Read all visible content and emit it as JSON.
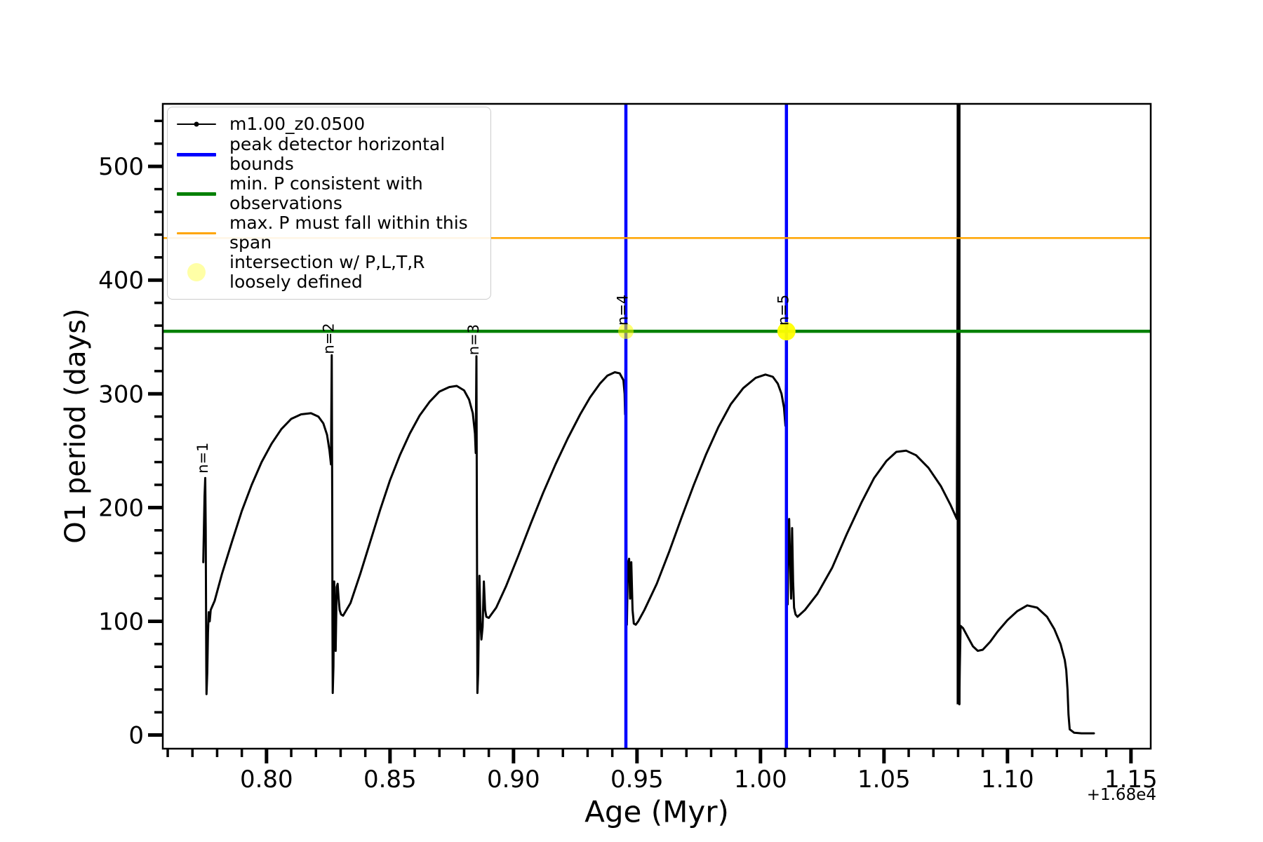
{
  "chart_data": {
    "type": "line",
    "title": "",
    "xlabel": "Age (Myr)",
    "ylabel": "O1 period (days)",
    "x_offset_text": "+1.68e4",
    "grid": false,
    "xlim": [
      0.758,
      1.158
    ],
    "ylim": [
      -12,
      555
    ],
    "x_major_ticks": [
      0.8,
      0.85,
      0.9,
      0.95,
      1.0,
      1.05,
      1.1,
      1.15
    ],
    "y_major_ticks": [
      0,
      100,
      200,
      300,
      400,
      500
    ],
    "x_minor_step": 0.01,
    "y_minor_step": 20,
    "legend": {
      "position": "upper-left",
      "entries": [
        {
          "label": "m1.00_z0.0500",
          "key": "line-marker",
          "color": "#000000",
          "lw": 2
        },
        {
          "label": "peak detector horizontal bounds",
          "key": "line",
          "color": "#0000ff",
          "lw": 5
        },
        {
          "label": "min. P consistent with observations",
          "key": "line",
          "color": "#008000",
          "lw": 5
        },
        {
          "label": "max. P must fall within this span",
          "key": "line",
          "color": "#ffa500",
          "lw": 3
        },
        {
          "label": "intersection w/ P,L,T,R\nloosely defined",
          "key": "marker",
          "color": "#ffff00",
          "alpha": 0.35,
          "r": 13
        }
      ]
    },
    "hlines": [
      {
        "name": "min-P-observed",
        "y": 355,
        "color": "#008000",
        "lw": 4.5
      },
      {
        "name": "max-P-span",
        "y": 437,
        "color": "#ffa500",
        "lw": 2.5
      }
    ],
    "vlines": [
      {
        "name": "peak-detector-bound-1",
        "x": 0.9455,
        "color": "#0000ff",
        "lw": 4.5,
        "y_from": -12,
        "y_to": 555
      },
      {
        "name": "peak-detector-bound-2",
        "x": 1.0105,
        "color": "#0000ff",
        "lw": 4.5,
        "y_from": -12,
        "y_to": 555
      },
      {
        "name": "data-excursion-wall",
        "x": 1.0802,
        "color": "#000000",
        "lw": 5.5,
        "y_from": 27,
        "y_to": 555
      }
    ],
    "markers": [
      {
        "name": "intersection-n4",
        "x": 0.9455,
        "y": 355,
        "color": "#ffff00",
        "alpha": 0.55,
        "r": 11
      },
      {
        "name": "intersection-n5",
        "x": 1.0105,
        "y": 355,
        "color": "#ffff00",
        "alpha": 0.95,
        "r": 13
      }
    ],
    "annotations": [
      {
        "text": "n=1",
        "x": 0.7762,
        "y": 230,
        "rotation": -90
      },
      {
        "text": "n=2",
        "x": 0.8272,
        "y": 335,
        "rotation": -90
      },
      {
        "text": "n=3",
        "x": 0.8858,
        "y": 334,
        "rotation": -90
      },
      {
        "text": "n=4",
        "x": 0.9462,
        "y": 360,
        "rotation": -90
      },
      {
        "text": "n=5",
        "x": 1.0112,
        "y": 360,
        "rotation": -90
      }
    ],
    "series": [
      {
        "name": "m1.00_z0.0500",
        "color": "#000000",
        "marker": ".",
        "points": [
          [
            0.7744,
            152
          ],
          [
            0.7749,
            210
          ],
          [
            0.7752,
            226
          ],
          [
            0.7754,
            180
          ],
          [
            0.7755,
            120
          ],
          [
            0.7756,
            60
          ],
          [
            0.7757,
            36
          ],
          [
            0.776,
            55
          ],
          [
            0.7763,
            90
          ],
          [
            0.7766,
            108
          ],
          [
            0.777,
            100
          ],
          [
            0.7774,
            110
          ],
          [
            0.778,
            113
          ],
          [
            0.779,
            118
          ],
          [
            0.782,
            142
          ],
          [
            0.786,
            170
          ],
          [
            0.79,
            197
          ],
          [
            0.794,
            220
          ],
          [
            0.798,
            240
          ],
          [
            0.802,
            256
          ],
          [
            0.806,
            269
          ],
          [
            0.81,
            278
          ],
          [
            0.814,
            282
          ],
          [
            0.818,
            283
          ],
          [
            0.821,
            280
          ],
          [
            0.823,
            274
          ],
          [
            0.8245,
            264
          ],
          [
            0.8255,
            250
          ],
          [
            0.8261,
            238
          ],
          [
            0.8264,
            334
          ],
          [
            0.8266,
            200
          ],
          [
            0.8267,
            100
          ],
          [
            0.8268,
            37
          ],
          [
            0.8271,
            60
          ],
          [
            0.8274,
            135
          ],
          [
            0.8277,
            95
          ],
          [
            0.828,
            74
          ],
          [
            0.8284,
            130
          ],
          [
            0.8288,
            133
          ],
          [
            0.8292,
            120
          ],
          [
            0.8296,
            110
          ],
          [
            0.8302,
            106
          ],
          [
            0.831,
            105
          ],
          [
            0.834,
            116
          ],
          [
            0.838,
            142
          ],
          [
            0.842,
            170
          ],
          [
            0.846,
            198
          ],
          [
            0.85,
            224
          ],
          [
            0.854,
            246
          ],
          [
            0.858,
            265
          ],
          [
            0.862,
            281
          ],
          [
            0.866,
            293
          ],
          [
            0.87,
            302
          ],
          [
            0.874,
            306
          ],
          [
            0.877,
            307
          ],
          [
            0.88,
            303
          ],
          [
            0.882,
            295
          ],
          [
            0.8835,
            283
          ],
          [
            0.8844,
            265
          ],
          [
            0.8847,
            248
          ],
          [
            0.885,
            333
          ],
          [
            0.8852,
            180
          ],
          [
            0.8854,
            37
          ],
          [
            0.8857,
            55
          ],
          [
            0.8862,
            140
          ],
          [
            0.8866,
            100
          ],
          [
            0.887,
            84
          ],
          [
            0.8875,
            95
          ],
          [
            0.888,
            135
          ],
          [
            0.8885,
            110
          ],
          [
            0.889,
            104
          ],
          [
            0.89,
            103
          ],
          [
            0.893,
            112
          ],
          [
            0.897,
            131
          ],
          [
            0.902,
            158
          ],
          [
            0.907,
            186
          ],
          [
            0.912,
            213
          ],
          [
            0.917,
            238
          ],
          [
            0.922,
            261
          ],
          [
            0.927,
            282
          ],
          [
            0.931,
            297
          ],
          [
            0.935,
            309
          ],
          [
            0.938,
            316
          ],
          [
            0.941,
            319
          ],
          [
            0.943,
            318
          ],
          [
            0.9445,
            312
          ],
          [
            0.945,
            300
          ],
          [
            0.9452,
            282
          ],
          [
            0.9455,
            358
          ],
          [
            0.9456,
            250
          ],
          [
            0.9457,
            160
          ],
          [
            0.9459,
            97
          ],
          [
            0.9463,
            150
          ],
          [
            0.9468,
            155
          ],
          [
            0.9472,
            120
          ],
          [
            0.9477,
            152
          ],
          [
            0.9482,
            110
          ],
          [
            0.9487,
            98
          ],
          [
            0.9495,
            97
          ],
          [
            0.9505,
            100
          ],
          [
            0.953,
            110
          ],
          [
            0.958,
            133
          ],
          [
            0.963,
            161
          ],
          [
            0.968,
            191
          ],
          [
            0.973,
            220
          ],
          [
            0.978,
            247
          ],
          [
            0.983,
            271
          ],
          [
            0.988,
            291
          ],
          [
            0.993,
            305
          ],
          [
            0.998,
            314
          ],
          [
            1.002,
            317
          ],
          [
            1.005,
            315
          ],
          [
            1.007,
            309
          ],
          [
            1.0085,
            300
          ],
          [
            1.0095,
            288
          ],
          [
            1.0101,
            272
          ],
          [
            1.0105,
            360
          ],
          [
            1.0106,
            250
          ],
          [
            1.0108,
            130
          ],
          [
            1.011,
            115
          ],
          [
            1.0113,
            185
          ],
          [
            1.0116,
            190
          ],
          [
            1.012,
            150
          ],
          [
            1.0124,
            120
          ],
          [
            1.0128,
            182
          ],
          [
            1.0132,
            135
          ],
          [
            1.0136,
            112
          ],
          [
            1.0142,
            106
          ],
          [
            1.015,
            104
          ],
          [
            1.018,
            110
          ],
          [
            1.023,
            124
          ],
          [
            1.029,
            147
          ],
          [
            1.035,
            177
          ],
          [
            1.041,
            205
          ],
          [
            1.046,
            226
          ],
          [
            1.051,
            241
          ],
          [
            1.055,
            249
          ],
          [
            1.059,
            250
          ],
          [
            1.063,
            246
          ],
          [
            1.068,
            235
          ],
          [
            1.073,
            219
          ],
          [
            1.077,
            202
          ],
          [
            1.0795,
            190
          ],
          [
            1.08,
            540
          ],
          [
            1.0803,
            300
          ],
          [
            1.0805,
            27
          ],
          [
            1.0807,
            60
          ],
          [
            1.081,
            96
          ],
          [
            1.082,
            94
          ],
          [
            1.084,
            86
          ],
          [
            1.086,
            78
          ],
          [
            1.088,
            74
          ],
          [
            1.09,
            75
          ],
          [
            1.093,
            82
          ],
          [
            1.096,
            91
          ],
          [
            1.1,
            101
          ],
          [
            1.104,
            109
          ],
          [
            1.108,
            114
          ],
          [
            1.112,
            112
          ],
          [
            1.116,
            104
          ],
          [
            1.119,
            93
          ],
          [
            1.1215,
            80
          ],
          [
            1.1232,
            66
          ],
          [
            1.1238,
            57
          ],
          [
            1.1243,
            40
          ],
          [
            1.1247,
            18
          ],
          [
            1.1252,
            5
          ],
          [
            1.127,
            2
          ],
          [
            1.13,
            1.5
          ],
          [
            1.135,
            1.5
          ]
        ]
      }
    ]
  }
}
